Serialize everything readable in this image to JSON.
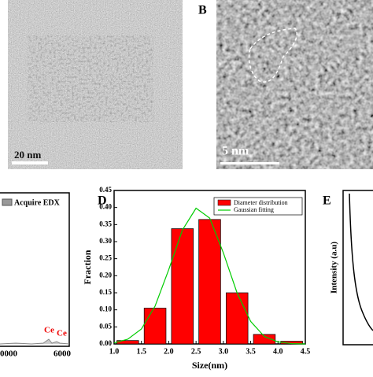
{
  "panels": {
    "A": {
      "scale_bar": "20 nm"
    },
    "B": {
      "label": "B",
      "scale_bar": "5 nm"
    },
    "C": {
      "legend": "Acquire EDX",
      "peak_labels": [
        "Ce",
        "Ce"
      ],
      "x_tick_labels": [
        "0000",
        "6000"
      ]
    },
    "E": {
      "label": "E",
      "y_label": "Intensity (a.u)"
    }
  },
  "chart_data": {
    "type": "histogram",
    "panel_label": "D",
    "x_label": "Size(nm)",
    "y_label": "Fraction",
    "bins": [
      1.0,
      1.5,
      2.0,
      2.5,
      3.0,
      3.5,
      4.0,
      4.5
    ],
    "series": [
      {
        "name": "Diameter distribution",
        "color": "#ff0000",
        "values": [
          0.01,
          0.105,
          0.338,
          0.365,
          0.15,
          0.028,
          0.008
        ]
      },
      {
        "name": "Gaussian fitting",
        "color": "#00cc00",
        "x": [
          1.0,
          1.25,
          1.5,
          1.75,
          2.0,
          2.25,
          2.5,
          2.75,
          3.0,
          3.25,
          3.5,
          3.75,
          4.0,
          4.25,
          4.5
        ],
        "values": [
          0.003,
          0.014,
          0.044,
          0.111,
          0.218,
          0.334,
          0.398,
          0.369,
          0.267,
          0.15,
          0.066,
          0.022,
          0.006,
          0.001,
          0.0
        ]
      }
    ],
    "xlim": [
      1.0,
      4.5
    ],
    "xticks": [
      {
        "value": 1.0,
        "label": "1.0"
      },
      {
        "value": 1.5,
        "label": "1.5"
      },
      {
        "value": 2.0,
        "label": "2.0"
      },
      {
        "value": 2.5,
        "label": "2.5"
      },
      {
        "value": 3.0,
        "label": "3.0"
      },
      {
        "value": 3.5,
        "label": "3.5"
      },
      {
        "value": 4.0,
        "label": "4.0"
      },
      {
        "value": 4.5,
        "label": "4.5"
      }
    ],
    "ylim": [
      0,
      0.45
    ],
    "yticks": [
      {
        "value": 0,
        "label": "0.00"
      },
      {
        "value": 0.05,
        "label": "0.05"
      },
      {
        "value": 0.1,
        "label": "0.10"
      },
      {
        "value": 0.15,
        "label": "0.15"
      },
      {
        "value": 0.2,
        "label": "0.20"
      },
      {
        "value": 0.25,
        "label": "0.25"
      },
      {
        "value": 0.3,
        "label": "0.30"
      },
      {
        "value": 0.35,
        "label": "0.35"
      },
      {
        "value": 0.4,
        "label": "0.40"
      },
      {
        "value": 0.45,
        "label": "0.45"
      }
    ]
  }
}
